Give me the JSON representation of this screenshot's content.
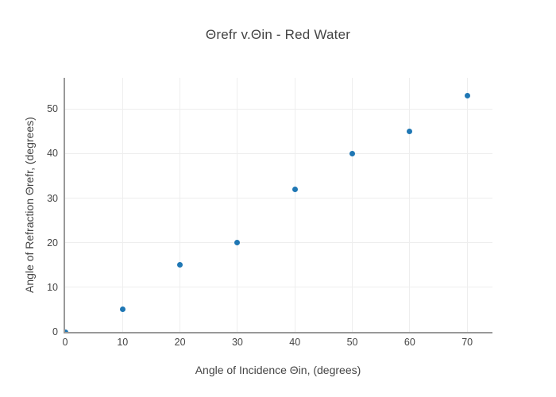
{
  "colors": {
    "marker": "#1f77b4",
    "grid": "#eeeeee",
    "axis": "#999999",
    "text": "#444444"
  },
  "chart_data": {
    "type": "scatter",
    "title": "Θrefr v.Θin - Red Water",
    "xlabel": "Angle of Incidence Θin, (degrees)",
    "ylabel": "Angle of Refraction Θrefr, (degrees)",
    "x": [
      0,
      10,
      20,
      30,
      40,
      50,
      60,
      70
    ],
    "y": [
      0,
      5,
      15,
      20,
      32,
      40,
      45,
      53
    ],
    "xlim": [
      0,
      74.4
    ],
    "ylim": [
      0,
      57
    ],
    "xticks": [
      0,
      10,
      20,
      30,
      40,
      50,
      60,
      70
    ],
    "yticks": [
      0,
      10,
      20,
      30,
      40,
      50
    ],
    "grid": true,
    "legend": false,
    "marker_size_px": 7
  }
}
